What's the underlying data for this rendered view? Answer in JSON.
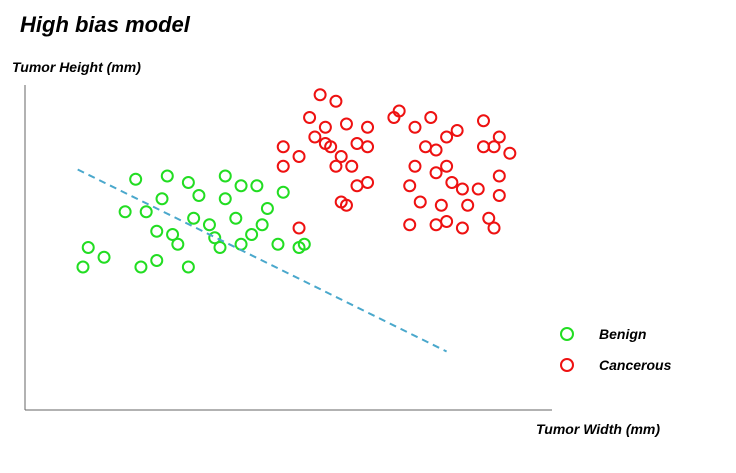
{
  "chart_data": {
    "type": "scatter",
    "title": "High bias model",
    "xlabel": "Tumor Width (mm)",
    "ylabel": "Tumor Height (mm)",
    "xlim": [
      0,
      100
    ],
    "ylim": [
      0,
      100
    ],
    "grid": false,
    "legend_position": "bottom-right",
    "series": [
      {
        "name": "Benign",
        "color": "#22dd22",
        "points": [
          [
            12,
            50
          ],
          [
            11,
            44
          ],
          [
            15,
            47
          ],
          [
            19,
            61
          ],
          [
            21,
            71
          ],
          [
            23,
            61
          ],
          [
            25,
            55
          ],
          [
            22,
            44
          ],
          [
            26,
            65
          ],
          [
            27,
            72
          ],
          [
            28,
            54
          ],
          [
            31,
            70
          ],
          [
            29,
            51
          ],
          [
            33,
            66
          ],
          [
            32,
            59
          ],
          [
            31,
            44
          ],
          [
            35,
            57
          ],
          [
            36,
            53
          ],
          [
            38,
            72
          ],
          [
            37,
            50
          ],
          [
            38,
            65
          ],
          [
            40,
            59
          ],
          [
            41,
            51
          ],
          [
            41,
            69
          ],
          [
            44,
            69
          ],
          [
            43,
            54
          ],
          [
            45,
            57
          ],
          [
            46,
            62
          ],
          [
            49,
            67
          ],
          [
            48,
            51
          ],
          [
            52,
            50
          ],
          [
            53,
            51
          ],
          [
            25,
            46
          ]
        ]
      },
      {
        "name": "Cancerous",
        "color": "#ee1111",
        "points": [
          [
            49,
            81
          ],
          [
            52,
            78
          ],
          [
            58,
            81
          ],
          [
            49,
            75
          ],
          [
            54,
            90
          ],
          [
            55,
            84
          ],
          [
            56,
            97
          ],
          [
            57,
            87
          ],
          [
            59,
            95
          ],
          [
            60,
            78
          ],
          [
            61,
            88
          ],
          [
            63,
            82
          ],
          [
            65,
            81
          ],
          [
            62,
            75
          ],
          [
            63,
            69
          ],
          [
            65,
            70
          ],
          [
            52,
            56
          ],
          [
            57,
            82
          ],
          [
            59,
            75
          ],
          [
            60,
            64
          ],
          [
            61,
            63
          ],
          [
            65,
            87
          ],
          [
            70,
            90
          ],
          [
            71,
            92
          ],
          [
            74,
            87
          ],
          [
            74,
            75
          ],
          [
            73,
            69
          ],
          [
            76,
            81
          ],
          [
            75,
            64
          ],
          [
            77,
            90
          ],
          [
            78,
            73
          ],
          [
            78,
            80
          ],
          [
            79,
            63
          ],
          [
            80,
            75
          ],
          [
            80,
            84
          ],
          [
            81,
            70
          ],
          [
            82,
            86
          ],
          [
            83,
            68
          ],
          [
            84,
            63
          ],
          [
            87,
            81
          ],
          [
            86,
            68
          ],
          [
            87,
            89
          ],
          [
            89,
            81
          ],
          [
            90,
            84
          ],
          [
            90,
            72
          ],
          [
            92,
            79
          ],
          [
            90,
            66
          ],
          [
            73,
            57
          ],
          [
            78,
            57
          ],
          [
            80,
            58
          ],
          [
            83,
            56
          ],
          [
            88,
            59
          ],
          [
            89,
            56
          ]
        ]
      },
      {
        "name": "",
        "type": "line",
        "style": "dashed",
        "color": "#4aa8cc",
        "points": [
          [
            10,
            74
          ],
          [
            80,
            18
          ]
        ]
      }
    ]
  }
}
